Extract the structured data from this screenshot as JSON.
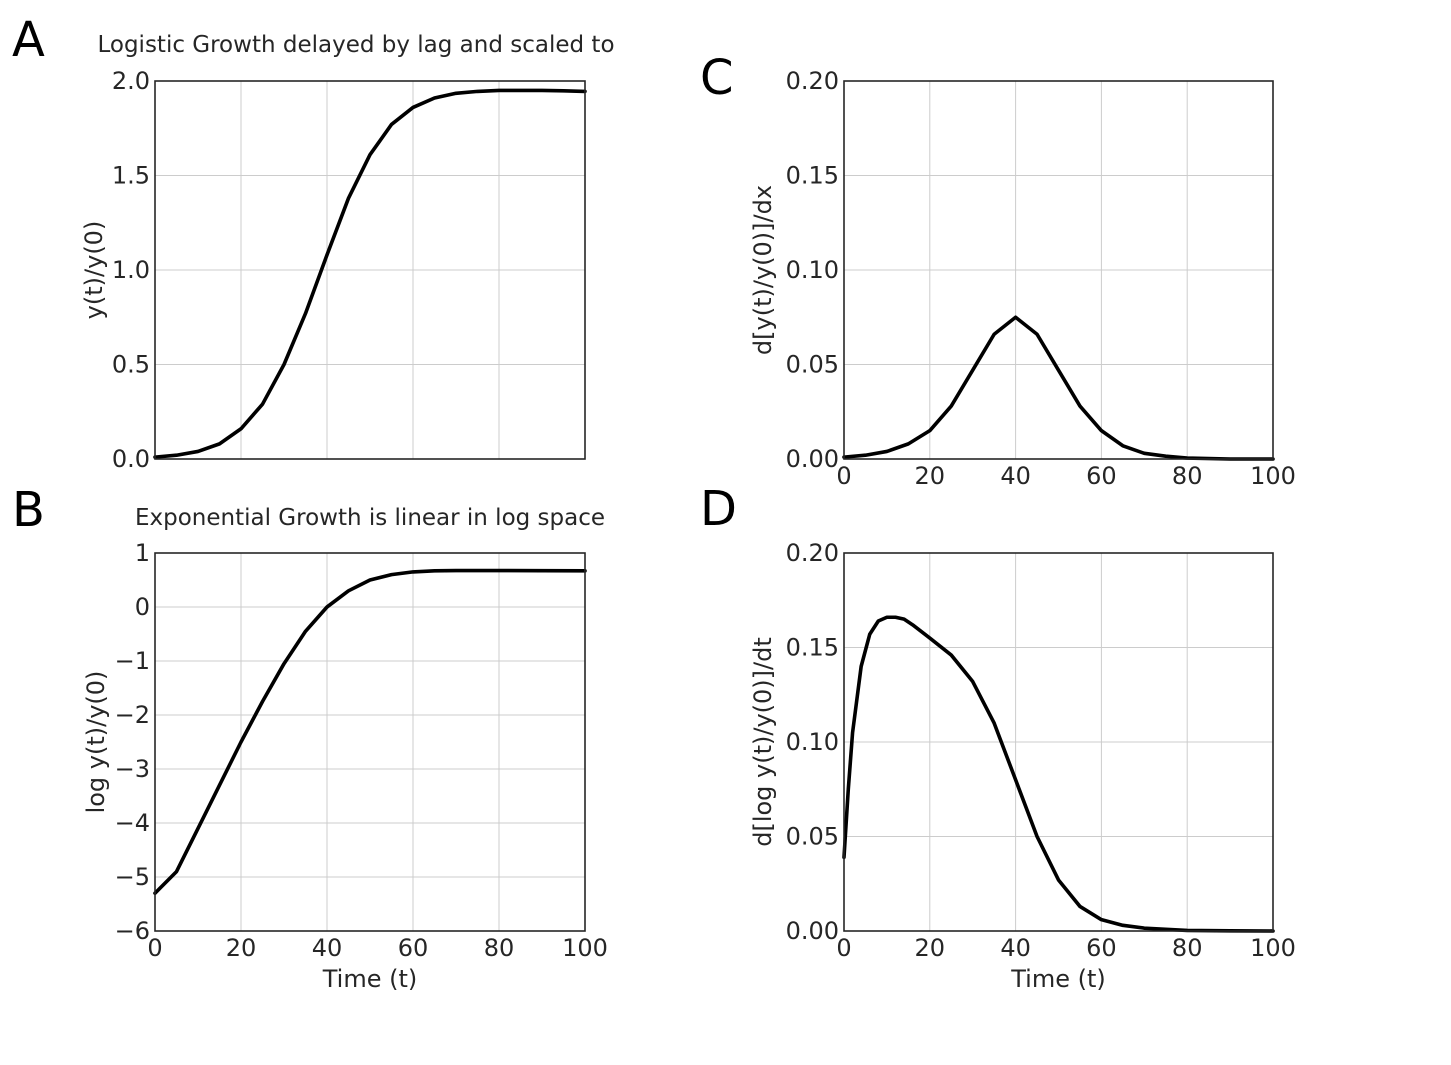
{
  "chart_data": [
    {
      "panel": "A",
      "type": "line",
      "title": "Logistic Growth delayed by lag and scaled to",
      "xlabel": "",
      "ylabel": "y(t)/y(0)",
      "xlim": [
        0,
        100
      ],
      "ylim": [
        0,
        2.0
      ],
      "xticks": [
        0,
        20,
        40,
        60,
        80,
        100
      ],
      "yticks": [
        0.0,
        0.5,
        1.0,
        1.5,
        2.0
      ],
      "xtick_labels": [],
      "ytick_labels": [
        "0.0",
        "0.5",
        "1.0",
        "1.5",
        "2.0"
      ],
      "grid": true,
      "series": [
        {
          "x": [
            0,
            5,
            10,
            15,
            20,
            25,
            30,
            35,
            40,
            45,
            50,
            55,
            60,
            65,
            70,
            75,
            80,
            85,
            90,
            95,
            100
          ],
          "y": [
            0.01,
            0.02,
            0.04,
            0.08,
            0.16,
            0.29,
            0.5,
            0.77,
            1.08,
            1.38,
            1.61,
            1.77,
            1.86,
            1.91,
            1.935,
            1.945,
            1.95,
            1.95,
            1.95,
            1.948,
            1.945
          ]
        }
      ]
    },
    {
      "panel": "B",
      "type": "line",
      "title": "Exponential Growth is linear in log space",
      "xlabel": "Time (t)",
      "ylabel": "log y(t)/y(0)",
      "xlim": [
        0,
        100
      ],
      "ylim": [
        -6,
        1
      ],
      "xticks": [
        0,
        20,
        40,
        60,
        80,
        100
      ],
      "yticks": [
        -6,
        -5,
        -4,
        -3,
        -2,
        -1,
        0,
        1
      ],
      "xtick_labels": [
        "0",
        "20",
        "40",
        "60",
        "80",
        "100"
      ],
      "ytick_labels": [
        "−6",
        "−5",
        "−4",
        "−3",
        "−2",
        "−1",
        "0",
        "1"
      ],
      "grid": true,
      "series": [
        {
          "x": [
            0,
            5,
            10,
            15,
            20,
            25,
            30,
            35,
            40,
            45,
            50,
            55,
            60,
            65,
            70,
            80,
            90,
            100
          ],
          "y": [
            -5.3,
            -4.9,
            -4.1,
            -3.3,
            -2.5,
            -1.75,
            -1.05,
            -0.45,
            0.0,
            0.3,
            0.5,
            0.6,
            0.65,
            0.67,
            0.675,
            0.675,
            0.672,
            0.67
          ]
        }
      ]
    },
    {
      "panel": "C",
      "type": "line",
      "title": "",
      "xlabel": "",
      "ylabel": "d[y(t)/y(0)]/dx",
      "xlim": [
        0,
        100
      ],
      "ylim": [
        0,
        0.2
      ],
      "xticks": [
        0,
        20,
        40,
        60,
        80,
        100
      ],
      "yticks": [
        0.0,
        0.05,
        0.1,
        0.15,
        0.2
      ],
      "xtick_labels": [
        "0",
        "20",
        "40",
        "60",
        "80",
        "100"
      ],
      "ytick_labels": [
        "0.00",
        "0.05",
        "0.10",
        "0.15",
        "0.20"
      ],
      "grid": true,
      "series": [
        {
          "x": [
            0,
            5,
            10,
            15,
            20,
            25,
            30,
            35,
            40,
            45,
            50,
            55,
            60,
            65,
            70,
            75,
            80,
            90,
            100
          ],
          "y": [
            0.001,
            0.002,
            0.004,
            0.008,
            0.015,
            0.028,
            0.047,
            0.066,
            0.075,
            0.066,
            0.047,
            0.028,
            0.015,
            0.007,
            0.003,
            0.0015,
            0.0005,
            0.0,
            0.0
          ]
        }
      ]
    },
    {
      "panel": "D",
      "type": "line",
      "title": "",
      "xlabel": "Time (t)",
      "ylabel": "d[log y(t)/y(0)]/dt",
      "xlim": [
        0,
        100
      ],
      "ylim": [
        0,
        0.2
      ],
      "xticks": [
        0,
        20,
        40,
        60,
        80,
        100
      ],
      "yticks": [
        0.0,
        0.05,
        0.1,
        0.15,
        0.2
      ],
      "xtick_labels": [
        "0",
        "20",
        "40",
        "60",
        "80",
        "100"
      ],
      "ytick_labels": [
        "0.00",
        "0.05",
        "0.10",
        "0.15",
        "0.20"
      ],
      "grid": true,
      "series": [
        {
          "x": [
            0,
            1,
            2,
            4,
            6,
            8,
            10,
            12,
            14,
            16,
            20,
            25,
            30,
            35,
            40,
            45,
            50,
            55,
            60,
            65,
            70,
            80,
            90,
            100
          ],
          "y": [
            0.039,
            0.075,
            0.105,
            0.14,
            0.157,
            0.164,
            0.166,
            0.166,
            0.165,
            0.162,
            0.155,
            0.146,
            0.132,
            0.11,
            0.08,
            0.05,
            0.027,
            0.013,
            0.006,
            0.003,
            0.0015,
            0.0003,
            0.0001,
            0.0
          ]
        }
      ]
    }
  ]
}
